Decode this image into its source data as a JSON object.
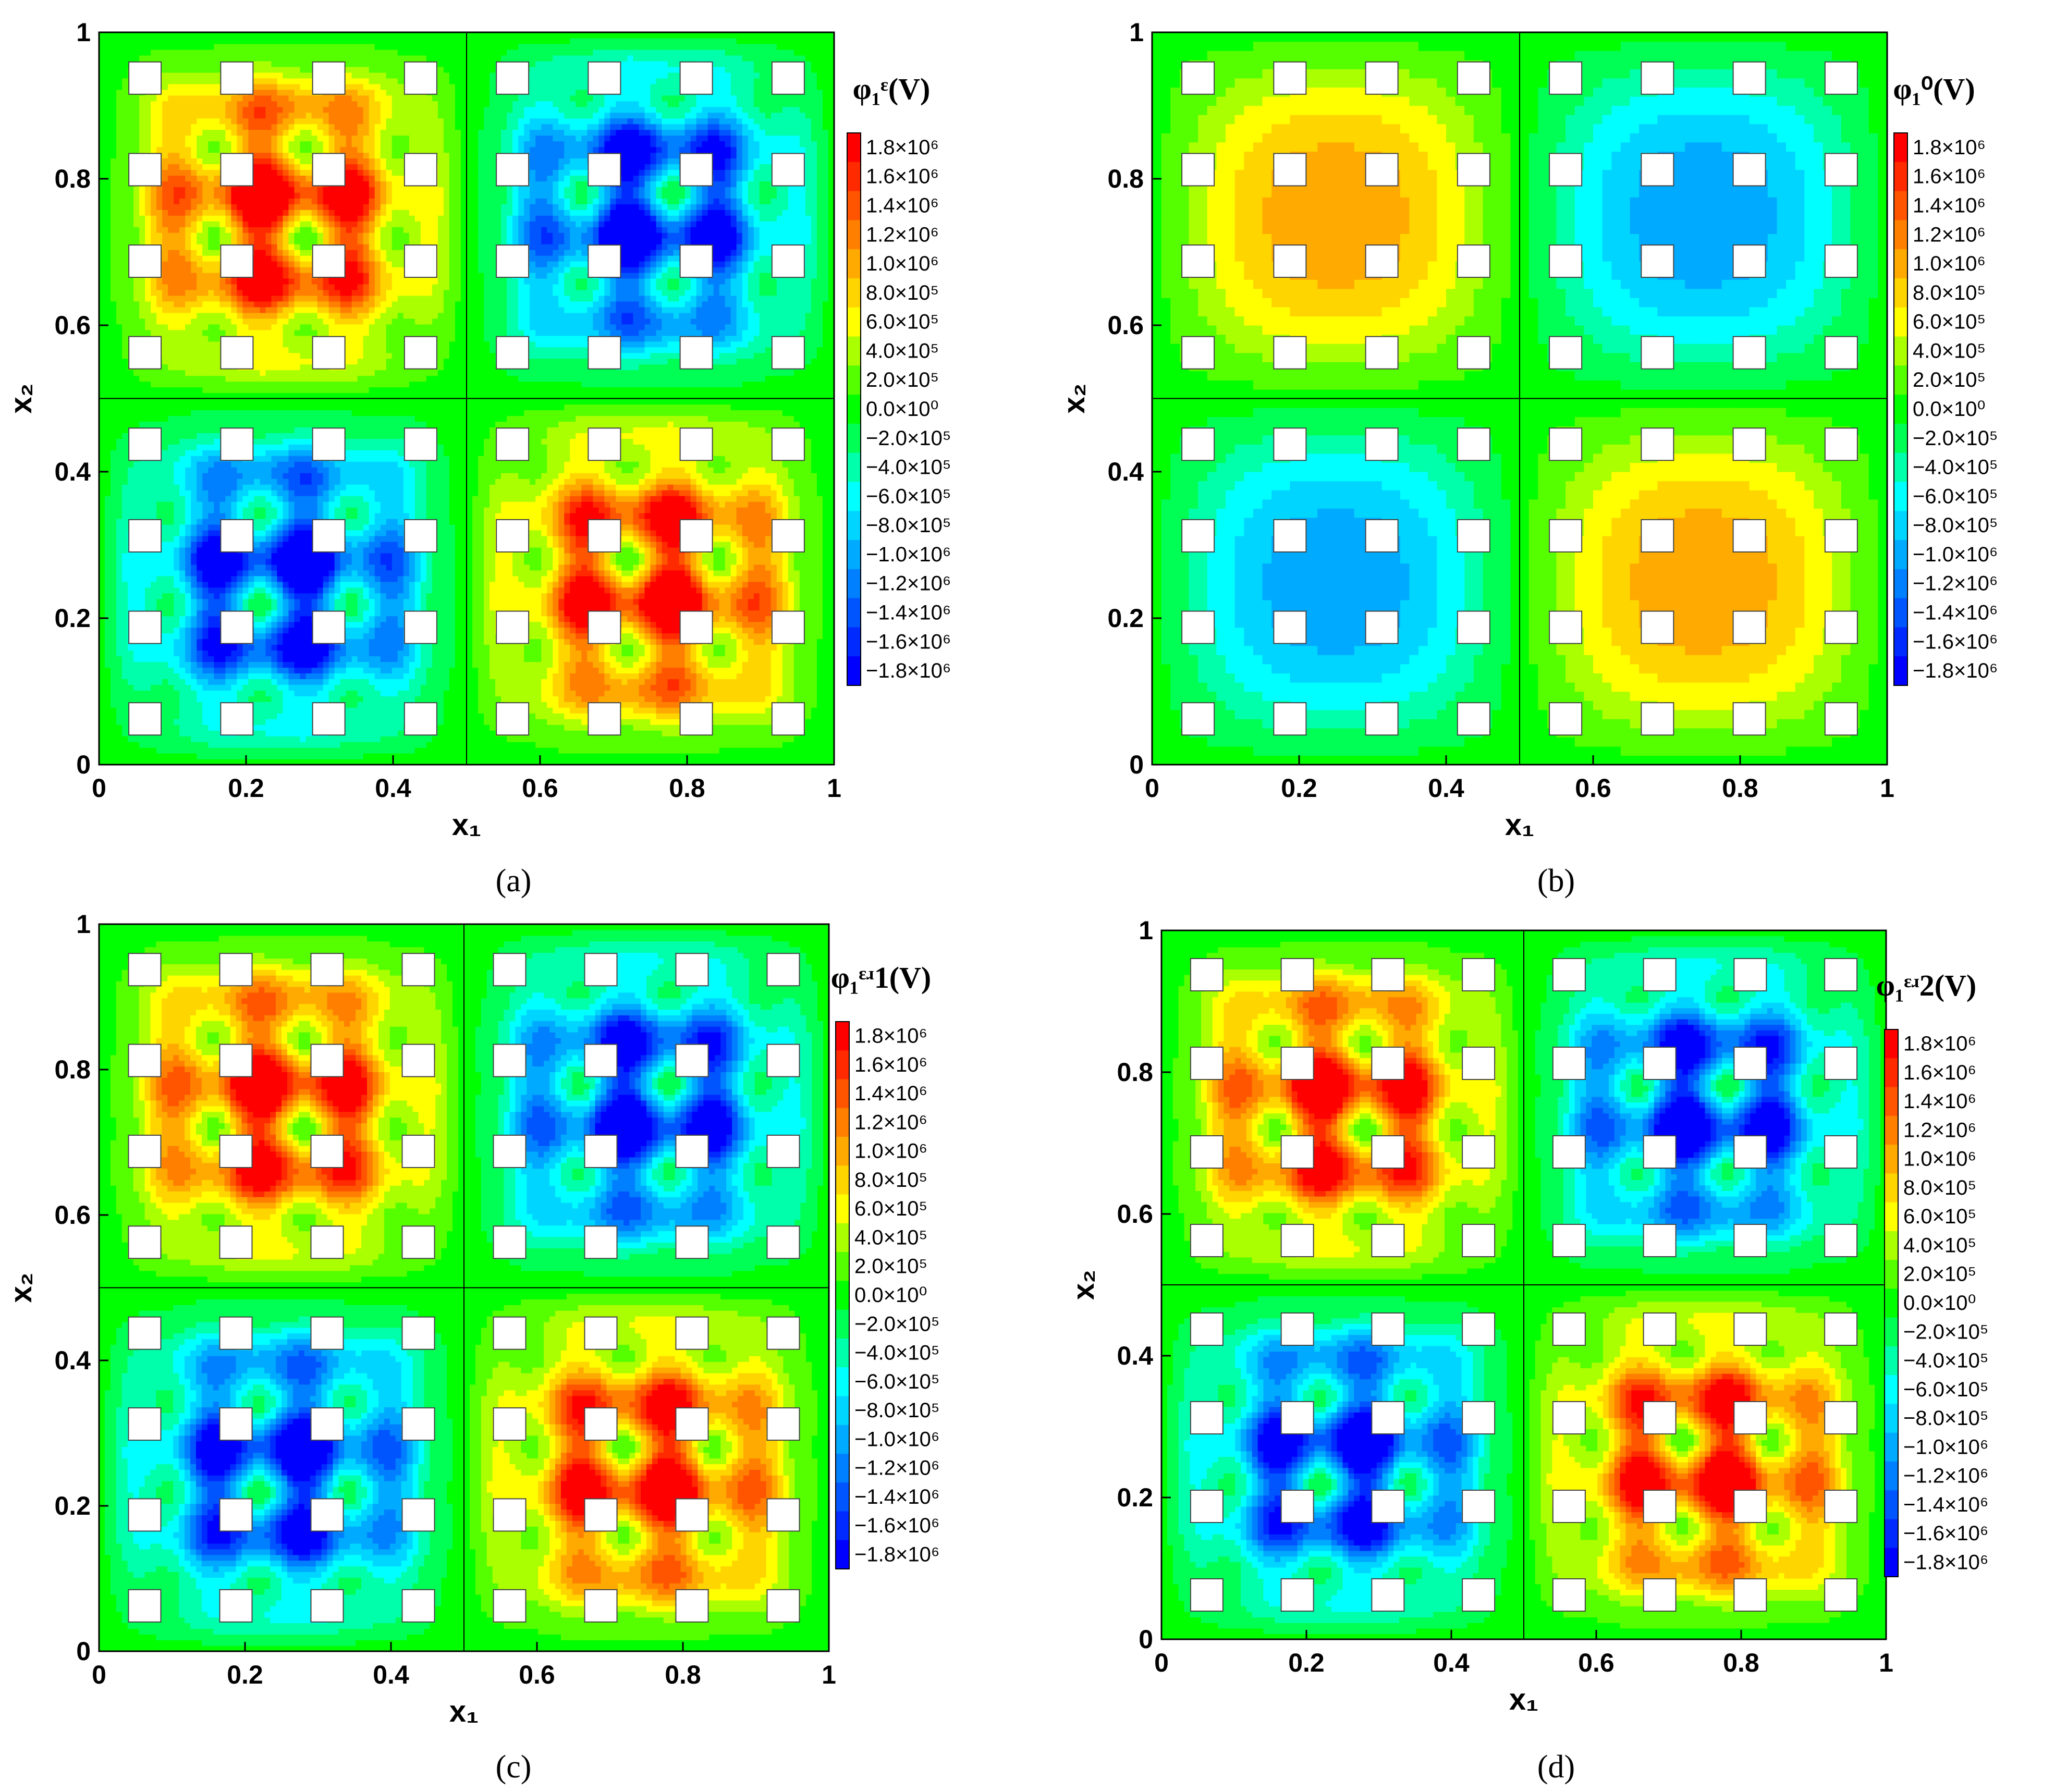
{
  "chart_data": [
    {
      "type": "heatmap",
      "panel": "a",
      "caption": "(a)",
      "legend_title": "φ₁ᵋ(V)",
      "xlabel": "x₁",
      "ylabel": "x₂",
      "xlim": [
        0,
        1
      ],
      "ylim": [
        0,
        1
      ],
      "xticks": [
        "0",
        "0.2",
        "0.4",
        "0.6",
        "0.8",
        "1"
      ],
      "yticks": [
        "0",
        "0.2",
        "0.4",
        "0.6",
        "0.8",
        "1"
      ],
      "field": "oscillating",
      "amplitude": 1800000
    },
    {
      "type": "heatmap",
      "panel": "b",
      "caption": "(b)",
      "legend_title": "φ₁⁰(V)",
      "xlabel": "x₁",
      "ylabel": "x₂",
      "xlim": [
        0,
        1
      ],
      "ylim": [
        0,
        1
      ],
      "xticks": [
        "0",
        "0.2",
        "0.4",
        "0.6",
        "0.8",
        "1"
      ],
      "yticks": [
        "0",
        "0.2",
        "0.4",
        "0.6",
        "0.8",
        "1"
      ],
      "field": "smooth",
      "amplitude": 1100000
    },
    {
      "type": "heatmap",
      "panel": "c",
      "caption": "(c)",
      "legend_title": "φ₁ᵋʴ1(V)",
      "xlabel": "x₁",
      "ylabel": "x₂",
      "xlim": [
        0,
        1
      ],
      "ylim": [
        0,
        1
      ],
      "xticks": [
        "0",
        "0.2",
        "0.4",
        "0.6",
        "0.8",
        "1"
      ],
      "yticks": [
        "0",
        "0.2",
        "0.4",
        "0.6",
        "0.8",
        "1"
      ],
      "field": "oscillating",
      "amplitude": 1750000
    },
    {
      "type": "heatmap",
      "panel": "d",
      "caption": "(d)",
      "legend_title": "φ₁ᵋʴ2(V)",
      "xlabel": "x₁",
      "ylabel": "x₂",
      "xlim": [
        0,
        1
      ],
      "ylim": [
        0,
        1
      ],
      "xticks": [
        "0",
        "0.2",
        "0.4",
        "0.6",
        "0.8",
        "1"
      ],
      "yticks": [
        "0",
        "0.2",
        "0.4",
        "0.6",
        "0.8",
        "1"
      ],
      "field": "oscillating",
      "amplitude": 1750000
    }
  ],
  "legend_levels": [
    "1.8×10⁶",
    "1.6×10⁶",
    "1.4×10⁶",
    "1.2×10⁶",
    "1.0×10⁶",
    "8.0×10⁵",
    "6.0×10⁵",
    "4.0×10⁵",
    "2.0×10⁵",
    "0.0×10⁰",
    "−2.0×10⁵",
    "−4.0×10⁵",
    "−6.0×10⁵",
    "−8.0×10⁵",
    "−1.0×10⁶",
    "−1.2×10⁶",
    "−1.4×10⁶",
    "−1.6×10⁶",
    "−1.8×10⁶"
  ],
  "legend_values": [
    1800000,
    1600000,
    1400000,
    1200000,
    1000000,
    800000,
    600000,
    400000,
    200000,
    0,
    -200000,
    -400000,
    -600000,
    -800000,
    -1000000,
    -1200000,
    -1400000,
    -1600000,
    -1800000
  ],
  "legend_colors": [
    "#ff0000",
    "#ff2a00",
    "#ff5500",
    "#ff8000",
    "#ffaa00",
    "#ffd500",
    "#ffff00",
    "#aaff00",
    "#55ff00",
    "#00ff00",
    "#00ff55",
    "#00ffaa",
    "#00ffff",
    "#00d5ff",
    "#00aaff",
    "#0080ff",
    "#0055ff",
    "#002aff",
    "#0000ff"
  ],
  "inclusion_centers": [
    0.0625,
    0.1875,
    0.3125,
    0.4375,
    0.5625,
    0.6875,
    0.8125,
    0.9375
  ],
  "smooth_panel_centers": [
    0.0625,
    0.1875,
    0.3125,
    0.4375,
    0.5625,
    0.6875,
    0.8125,
    0.9375
  ],
  "smooth_panel_rows": [
    0.0625,
    0.1875,
    0.3125,
    0.4375,
    0.5625,
    0.6875,
    0.8125,
    0.9375
  ]
}
